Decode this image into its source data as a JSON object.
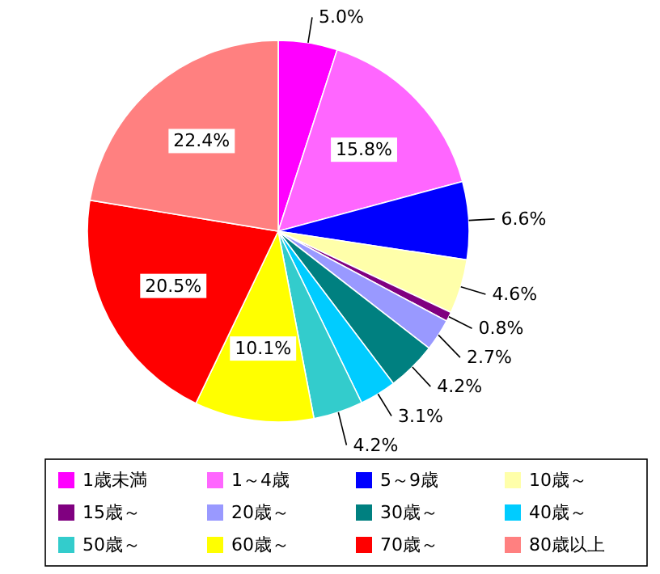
{
  "chart_data": {
    "type": "pie",
    "categories": [
      "1歳未満",
      "1～4歳",
      "5～9歳",
      "10歳～",
      "15歳～",
      "20歳～",
      "30歳～",
      "40歳～",
      "50歳～",
      "60歳～",
      "70歳～",
      "80歳以上"
    ],
    "values": [
      5.0,
      15.8,
      6.6,
      4.6,
      0.8,
      2.7,
      4.2,
      3.1,
      4.2,
      10.1,
      20.5,
      22.4
    ],
    "colors": [
      "#ff00ff",
      "#ff66ff",
      "#0000ff",
      "#ffffaa",
      "#800080",
      "#9999ff",
      "#008080",
      "#00ccff",
      "#33cccc",
      "#ffff00",
      "#ff0000",
      "#ff8080"
    ],
    "value_labels": [
      "5.0%",
      "15.8%",
      "6.6%",
      "4.6%",
      "0.8%",
      "2.7%",
      "4.2%",
      "3.1%",
      "4.2%",
      "10.1%",
      "20.5%",
      "22.4%"
    ],
    "legend": "bottom"
  }
}
